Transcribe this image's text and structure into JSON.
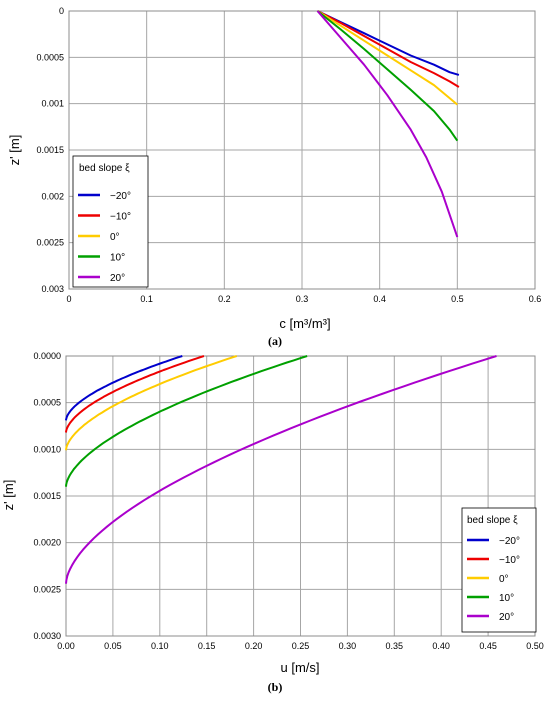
{
  "panels": [
    {
      "caption": "(a)",
      "chart_data": {
        "type": "line",
        "xlabel": "c [m³/m³]",
        "ylabel": "z' [m]",
        "xlim": [
          0,
          0.6
        ],
        "ylim": [
          0,
          0.003
        ],
        "y_inverted": true,
        "grid": true,
        "x_ticks": [
          "0",
          "0.1",
          "0.2",
          "0.3",
          "0.4",
          "0.5",
          "0.6"
        ],
        "y_ticks": [
          "0",
          "0.0005",
          "0.001",
          "0.0015",
          "0.002",
          "0.0025",
          "0.003"
        ],
        "legend": {
          "title": "bed slope ξ",
          "position": "bottom-left"
        },
        "series": [
          {
            "name": "−20°",
            "color": "#0000cc",
            "points": [
              [
                0.32,
                0
              ],
              [
                0.35,
                0.00012
              ],
              [
                0.38,
                0.00024
              ],
              [
                0.41,
                0.00036
              ],
              [
                0.44,
                0.00048
              ],
              [
                0.47,
                0.00058
              ],
              [
                0.49,
                0.00066
              ],
              [
                0.502,
                0.00069
              ]
            ]
          },
          {
            "name": "−10°",
            "color": "#ee0000",
            "points": [
              [
                0.32,
                0
              ],
              [
                0.35,
                0.00013
              ],
              [
                0.38,
                0.00027
              ],
              [
                0.41,
                0.00041
              ],
              [
                0.44,
                0.00055
              ],
              [
                0.47,
                0.00067
              ],
              [
                0.49,
                0.00076
              ],
              [
                0.502,
                0.00082
              ]
            ]
          },
          {
            "name": "0°",
            "color": "#ffcc00",
            "points": [
              [
                0.32,
                0
              ],
              [
                0.35,
                0.00016
              ],
              [
                0.38,
                0.00032
              ],
              [
                0.41,
                0.00048
              ],
              [
                0.44,
                0.00064
              ],
              [
                0.47,
                0.0008
              ],
              [
                0.49,
                0.00094
              ],
              [
                0.5,
                0.00101
              ]
            ]
          },
          {
            "name": "10°",
            "color": "#00a000",
            "points": [
              [
                0.32,
                0
              ],
              [
                0.35,
                0.0002
              ],
              [
                0.38,
                0.00041
              ],
              [
                0.41,
                0.00063
              ],
              [
                0.44,
                0.00085
              ],
              [
                0.47,
                0.00108
              ],
              [
                0.49,
                0.00128
              ],
              [
                0.5,
                0.0014
              ]
            ]
          },
          {
            "name": "20°",
            "color": "#aa00cc",
            "points": [
              [
                0.32,
                0
              ],
              [
                0.35,
                0.00029
              ],
              [
                0.38,
                0.00058
              ],
              [
                0.41,
                0.00091
              ],
              [
                0.44,
                0.00128
              ],
              [
                0.46,
                0.00158
              ],
              [
                0.48,
                0.00195
              ],
              [
                0.5,
                0.00244
              ]
            ]
          }
        ]
      }
    },
    {
      "caption": "(b)",
      "chart_data": {
        "type": "line",
        "xlabel": "u [m/s]",
        "ylabel": "z' [m]",
        "xlim": [
          0,
          0.5
        ],
        "ylim": [
          0,
          0.003
        ],
        "y_inverted": true,
        "grid": true,
        "x_ticks": [
          "0.00",
          "0.05",
          "0.10",
          "0.15",
          "0.20",
          "0.25",
          "0.30",
          "0.35",
          "0.40",
          "0.45",
          "0.50"
        ],
        "y_ticks": [
          "0.0000",
          "0.0005",
          "0.0010",
          "0.0015",
          "0.0020",
          "0.0025",
          "0.0030"
        ],
        "legend": {
          "title": "bed slope ξ",
          "position": "bottom-right"
        },
        "series": [
          {
            "name": "−20°",
            "color": "#0000cc",
            "u_max": 0.124,
            "depth": 0.00069
          },
          {
            "name": "−10°",
            "color": "#ee0000",
            "u_max": 0.147,
            "depth": 0.00082
          },
          {
            "name": "0°",
            "color": "#ffcc00",
            "u_max": 0.182,
            "depth": 0.00101
          },
          {
            "name": "10°",
            "color": "#00a000",
            "u_max": 0.257,
            "depth": 0.0014
          },
          {
            "name": "20°",
            "color": "#aa00cc",
            "u_max": 0.459,
            "depth": 0.00244
          }
        ]
      }
    }
  ]
}
